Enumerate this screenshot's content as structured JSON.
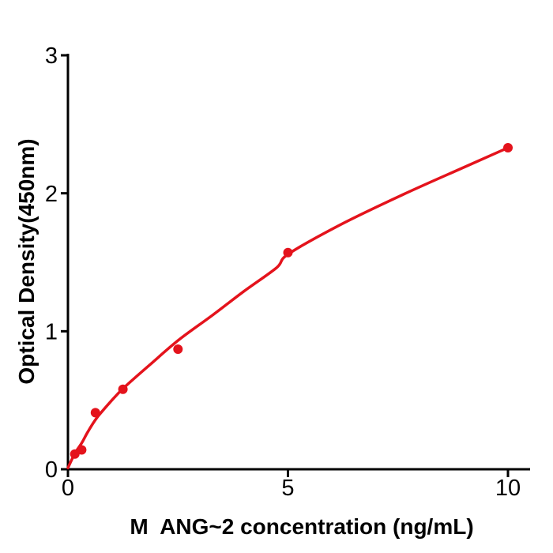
{
  "chart_data": {
    "type": "scatter",
    "xlabel": "M  ANG~2 concentration (ng/mL)",
    "ylabel": "Optical Density(450nm)",
    "x_ticks": [
      0,
      5,
      10
    ],
    "y_ticks": [
      0,
      1,
      2,
      3
    ],
    "xlim": [
      0,
      10.5
    ],
    "ylim": [
      0,
      3
    ],
    "grid": false,
    "legend": null,
    "point_color": "#e4131c",
    "curve_color": "#e4131c",
    "axis_color": "#000000",
    "background_color": "#ffffff",
    "points": [
      {
        "x": 0.156,
        "y": 0.11
      },
      {
        "x": 0.313,
        "y": 0.14
      },
      {
        "x": 0.625,
        "y": 0.41
      },
      {
        "x": 1.25,
        "y": 0.58
      },
      {
        "x": 2.5,
        "y": 0.87
      },
      {
        "x": 5,
        "y": 1.57
      },
      {
        "x": 10,
        "y": 2.33
      }
    ],
    "fit_curve": [
      {
        "x": 0,
        "y": 0.01
      },
      {
        "x": 0.156,
        "y": 0.114
      },
      {
        "x": 0.313,
        "y": 0.19
      },
      {
        "x": 0.45,
        "y": 0.27
      },
      {
        "x": 0.65,
        "y": 0.37
      },
      {
        "x": 0.97,
        "y": 0.49
      },
      {
        "x": 1.27,
        "y": 0.59
      },
      {
        "x": 1.87,
        "y": 0.76
      },
      {
        "x": 2.53,
        "y": 0.94
      },
      {
        "x": 3.3,
        "y": 1.12
      },
      {
        "x": 4.0,
        "y": 1.29
      },
      {
        "x": 4.74,
        "y": 1.46
      },
      {
        "x": 5.01,
        "y": 1.56
      },
      {
        "x": 6.18,
        "y": 1.77
      },
      {
        "x": 7.61,
        "y": 1.99
      },
      {
        "x": 9.01,
        "y": 2.19
      },
      {
        "x": 10,
        "y": 2.33
      }
    ]
  }
}
